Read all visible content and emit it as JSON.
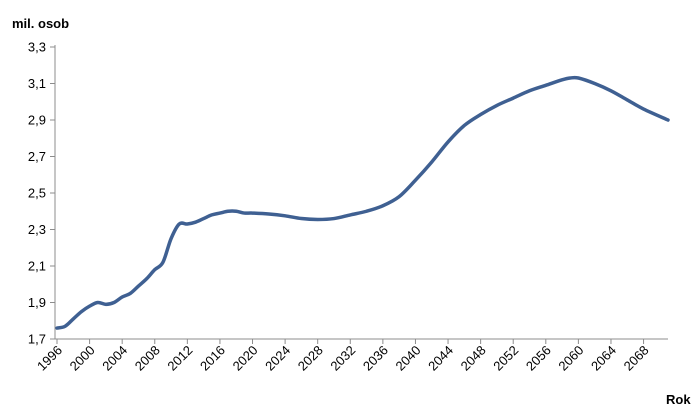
{
  "chart_data": {
    "type": "line",
    "ylabel": "mil. osob",
    "xlabel": "Rok",
    "ylim": [
      1.7,
      3.3
    ],
    "y_ticks": [
      "1,7",
      "1,9",
      "2,1",
      "2,3",
      "2,5",
      "2,7",
      "2,9",
      "3,1",
      "3,3"
    ],
    "y_tick_values": [
      1.7,
      1.9,
      2.1,
      2.3,
      2.5,
      2.7,
      2.9,
      3.1,
      3.3
    ],
    "xlim": [
      1996,
      2071
    ],
    "x_ticks": [
      "1996",
      "2000",
      "2004",
      "2008",
      "2012",
      "2016",
      "2020",
      "2024",
      "2028",
      "2032",
      "2036",
      "2040",
      "2044",
      "2048",
      "2052",
      "2056",
      "2060",
      "2064",
      "2068"
    ],
    "x_tick_values": [
      1996,
      2000,
      2004,
      2008,
      2012,
      2016,
      2020,
      2024,
      2028,
      2032,
      2036,
      2040,
      2044,
      2048,
      2052,
      2056,
      2060,
      2064,
      2068
    ],
    "grid": false,
    "line_color": "#3f6092",
    "series": [
      {
        "x": [
          1996,
          1997,
          1998,
          1999,
          2000,
          2001,
          2002,
          2003,
          2004,
          2005,
          2006,
          2007,
          2008,
          2009,
          2010,
          2011,
          2012,
          2013,
          2014,
          2015,
          2016,
          2017,
          2018,
          2019,
          2020,
          2022,
          2024,
          2026,
          2028,
          2030,
          2032,
          2034,
          2036,
          2038,
          2040,
          2042,
          2044,
          2046,
          2048,
          2050,
          2052,
          2054,
          2056,
          2058,
          2059,
          2060,
          2062,
          2064,
          2066,
          2068,
          2071
        ],
        "y": [
          1.76,
          1.77,
          1.81,
          1.85,
          1.88,
          1.9,
          1.89,
          1.9,
          1.93,
          1.95,
          1.99,
          2.03,
          2.08,
          2.12,
          2.25,
          2.33,
          2.33,
          2.34,
          2.36,
          2.38,
          2.39,
          2.4,
          2.4,
          2.39,
          2.39,
          2.385,
          2.375,
          2.36,
          2.355,
          2.36,
          2.38,
          2.4,
          2.43,
          2.48,
          2.57,
          2.67,
          2.78,
          2.87,
          2.93,
          2.98,
          3.02,
          3.06,
          3.09,
          3.12,
          3.13,
          3.13,
          3.1,
          3.06,
          3.01,
          2.96,
          2.9
        ]
      }
    ]
  }
}
